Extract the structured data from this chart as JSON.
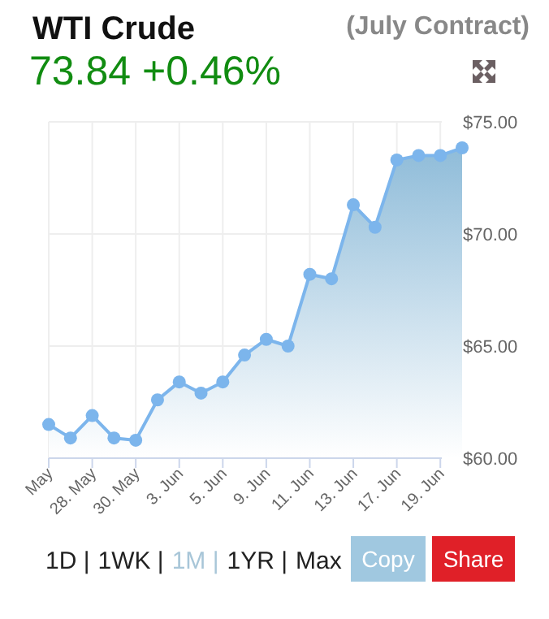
{
  "chart_data": {
    "type": "area",
    "title": "WTI Crude",
    "subtitle": "(July Contract)",
    "categories": [
      "May",
      null,
      "28. May",
      null,
      "30. May",
      null,
      "3. Jun",
      null,
      "5. Jun",
      null,
      "9. Jun",
      null,
      "11. Jun",
      null,
      "13. Jun",
      null,
      "17. Jun",
      null,
      "19. Jun",
      null
    ],
    "series": [
      {
        "color": "#7cb5ec",
        "values": [
          61.5,
          60.9,
          61.9,
          60.9,
          60.8,
          62.6,
          63.4,
          62.9,
          63.4,
          64.6,
          65.3,
          65.0,
          68.2,
          68.0,
          71.3,
          70.3,
          73.3,
          73.5,
          73.5,
          73.84
        ]
      }
    ],
    "ylim": [
      60,
      75
    ],
    "yticks": [
      {
        "value": 60,
        "label": "$60.00"
      },
      {
        "value": 65,
        "label": "$65.00"
      },
      {
        "value": 70,
        "label": "$70.00"
      },
      {
        "value": 75,
        "label": "$75.00"
      }
    ],
    "grid": true,
    "marker": "circle",
    "annotations": [
      "73.84 +0.46%",
      "1D |",
      "1WK |",
      "1M |",
      "1YR |",
      "Max",
      "Copy",
      "Share"
    ]
  }
}
